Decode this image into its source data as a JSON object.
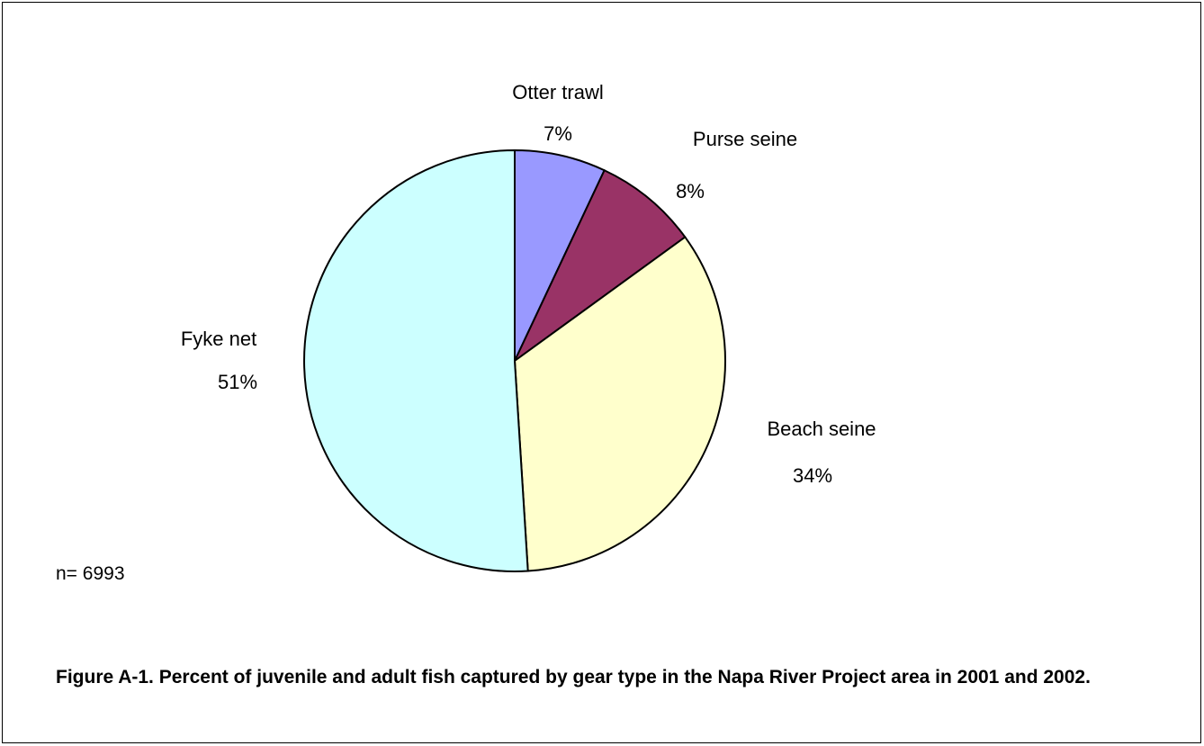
{
  "chart_data": {
    "type": "pie",
    "slices": [
      {
        "label": "Otter trawl",
        "value": 7,
        "pct_label": "7%",
        "color": "#9999ff"
      },
      {
        "label": "Purse seine",
        "value": 8,
        "pct_label": "8%",
        "color": "#993366"
      },
      {
        "label": "Beach seine",
        "value": 34,
        "pct_label": "34%",
        "color": "#ffffcc"
      },
      {
        "label": "Fyke net",
        "value": 51,
        "pct_label": "51%",
        "color": "#ccffff"
      }
    ],
    "start_angle_deg": 0,
    "direction": "clockwise"
  },
  "sample_size": "n= 6993",
  "caption": "Figure A-1. Percent of juvenile and adult fish captured by gear type in the Napa River Project area in 2001 and 2002."
}
